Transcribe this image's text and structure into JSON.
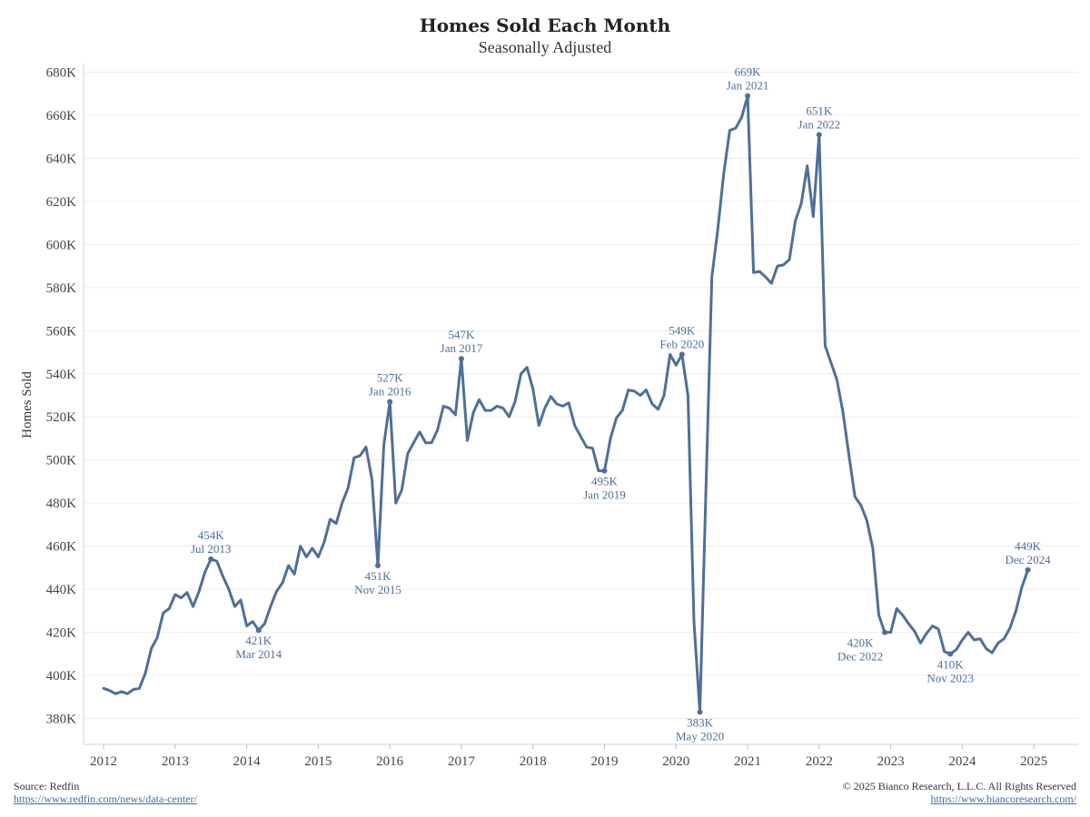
{
  "chart_data": {
    "type": "line",
    "title": "Homes Sold Each Month",
    "subtitle": "Seasonally Adjusted",
    "ylabel": "Homes Sold",
    "xlabel": "",
    "ylim": [
      368000,
      684000
    ],
    "xlim": [
      2011.72,
      2025.62
    ],
    "y_ticks": [
      380000,
      400000,
      420000,
      440000,
      460000,
      480000,
      500000,
      520000,
      540000,
      560000,
      580000,
      600000,
      620000,
      640000,
      660000,
      680000
    ],
    "y_tick_labels": [
      "380K",
      "400K",
      "420K",
      "440K",
      "460K",
      "480K",
      "500K",
      "520K",
      "540K",
      "560K",
      "580K",
      "600K",
      "620K",
      "640K",
      "660K",
      "680K"
    ],
    "x_ticks": [
      2012,
      2013,
      2014,
      2015,
      2016,
      2017,
      2018,
      2019,
      2020,
      2021,
      2022,
      2023,
      2024,
      2025
    ],
    "x_tick_labels": [
      "2012",
      "2013",
      "2014",
      "2015",
      "2016",
      "2017",
      "2018",
      "2019",
      "2020",
      "2021",
      "2022",
      "2023",
      "2024",
      "2025"
    ],
    "grid": true,
    "line_color": "#4e6f98",
    "series": [
      {
        "x": [
          "2012-01",
          "2012-02",
          "2012-03",
          "2012-04",
          "2012-05",
          "2012-06",
          "2012-07",
          "2012-08",
          "2012-09",
          "2012-10",
          "2012-11",
          "2012-12",
          "2013-01",
          "2013-02",
          "2013-03",
          "2013-04",
          "2013-05",
          "2013-06",
          "2013-07",
          "2013-08",
          "2013-09",
          "2013-10",
          "2013-11",
          "2013-12",
          "2014-01",
          "2014-02",
          "2014-03",
          "2014-04",
          "2014-05",
          "2014-06",
          "2014-07",
          "2014-08",
          "2014-09",
          "2014-10",
          "2014-11",
          "2014-12",
          "2015-01",
          "2015-02",
          "2015-03",
          "2015-04",
          "2015-05",
          "2015-06",
          "2015-07",
          "2015-08",
          "2015-09",
          "2015-10",
          "2015-11",
          "2015-12",
          "2016-01",
          "2016-02",
          "2016-03",
          "2016-04",
          "2016-05",
          "2016-06",
          "2016-07",
          "2016-08",
          "2016-09",
          "2016-10",
          "2016-11",
          "2016-12",
          "2017-01",
          "2017-02",
          "2017-03",
          "2017-04",
          "2017-05",
          "2017-06",
          "2017-07",
          "2017-08",
          "2017-09",
          "2017-10",
          "2017-11",
          "2017-12",
          "2018-01",
          "2018-02",
          "2018-03",
          "2018-04",
          "2018-05",
          "2018-06",
          "2018-07",
          "2018-08",
          "2018-09",
          "2018-10",
          "2018-11",
          "2018-12",
          "2019-01",
          "2019-02",
          "2019-03",
          "2019-04",
          "2019-05",
          "2019-06",
          "2019-07",
          "2019-08",
          "2019-09",
          "2019-10",
          "2019-11",
          "2019-12",
          "2020-01",
          "2020-02",
          "2020-03",
          "2020-04",
          "2020-05",
          "2020-06",
          "2020-07",
          "2020-08",
          "2020-09",
          "2020-10",
          "2020-11",
          "2020-12",
          "2021-01",
          "2021-02",
          "2021-03",
          "2021-04",
          "2021-05",
          "2021-06",
          "2021-07",
          "2021-08",
          "2021-09",
          "2021-10",
          "2021-11",
          "2021-12",
          "2022-01",
          "2022-02",
          "2022-03",
          "2022-04",
          "2022-05",
          "2022-06",
          "2022-07",
          "2022-08",
          "2022-09",
          "2022-10",
          "2022-11",
          "2022-12",
          "2023-01",
          "2023-02",
          "2023-03",
          "2023-04",
          "2023-05",
          "2023-06",
          "2023-07",
          "2023-08",
          "2023-09",
          "2023-10",
          "2023-11",
          "2023-12",
          "2024-01",
          "2024-02",
          "2024-03",
          "2024-04",
          "2024-05",
          "2024-06",
          "2024-07",
          "2024-08",
          "2024-09",
          "2024-10",
          "2024-11",
          "2024-12"
        ],
        "y": [
          394000,
          393000,
          391500,
          392500,
          391500,
          393500,
          394000,
          401000,
          412500,
          417500,
          429000,
          431000,
          437500,
          436000,
          438500,
          432000,
          439000,
          448000,
          454000,
          453000,
          446000,
          440000,
          432000,
          435000,
          423000,
          425000,
          421000,
          424000,
          432000,
          439000,
          443000,
          451000,
          447000,
          460000,
          455000,
          459000,
          455000,
          462000,
          472500,
          470500,
          480000,
          487000,
          501000,
          502000,
          506000,
          491000,
          451000,
          507000,
          527000,
          480000,
          486000,
          503000,
          508000,
          513000,
          508000,
          508000,
          514000,
          525000,
          524000,
          521000,
          547000,
          509000,
          522000,
          528000,
          523000,
          523000,
          525000,
          524000,
          520000,
          527000,
          540000,
          543000,
          533000,
          516000,
          524000,
          529500,
          526000,
          525000,
          526500,
          516000,
          511000,
          506000,
          505500,
          495000,
          495000,
          510000,
          519500,
          523000,
          532500,
          532000,
          530000,
          532500,
          526000,
          523500,
          530000,
          549000,
          544000,
          549000,
          530000,
          425000,
          383000,
          485000,
          585000,
          607000,
          633000,
          653000,
          654000,
          659000,
          669000,
          587000,
          587500,
          585000,
          582000,
          590000,
          590500,
          593000,
          611000,
          619000,
          636500,
          613000,
          651000,
          553000,
          545000,
          537000,
          522000,
          502000,
          483000,
          479000,
          472000,
          459000,
          428000,
          420000,
          420000,
          431000,
          428000,
          424000,
          420500,
          415000,
          419500,
          423000,
          421500,
          411000,
          410000,
          412000,
          416500,
          420000,
          416500,
          417000,
          412500,
          410500,
          415000,
          417000,
          422000,
          430000,
          441000,
          449000
        ]
      }
    ],
    "annotations": [
      {
        "date": "2013-07",
        "value": 454000,
        "label": "454K",
        "sublabel": "Jul 2013",
        "pos": "above"
      },
      {
        "date": "2014-03",
        "value": 421000,
        "label": "421K",
        "sublabel": "Mar 2014",
        "pos": "below"
      },
      {
        "date": "2015-11",
        "value": 451000,
        "label": "451K",
        "sublabel": "Nov 2015",
        "pos": "below"
      },
      {
        "date": "2016-01",
        "value": 527000,
        "label": "527K",
        "sublabel": "Jan 2016",
        "pos": "above"
      },
      {
        "date": "2017-01",
        "value": 547000,
        "label": "547K",
        "sublabel": "Jan 2017",
        "pos": "above"
      },
      {
        "date": "2019-01",
        "value": 495000,
        "label": "495K",
        "sublabel": "Jan 2019",
        "pos": "below"
      },
      {
        "date": "2020-02",
        "value": 549000,
        "label": "549K",
        "sublabel": "Feb 2020",
        "pos": "above"
      },
      {
        "date": "2020-05",
        "value": 383000,
        "label": "383K",
        "sublabel": "May 2020",
        "pos": "below"
      },
      {
        "date": "2021-01",
        "value": 669000,
        "label": "669K",
        "sublabel": "Jan 2021",
        "pos": "above"
      },
      {
        "date": "2022-01",
        "value": 651000,
        "label": "651K",
        "sublabel": "Jan 2022",
        "pos": "above"
      },
      {
        "date": "2022-12",
        "value": 420000,
        "label": "420K",
        "sublabel": "Dec 2022",
        "pos": "below-left"
      },
      {
        "date": "2023-11",
        "value": 410000,
        "label": "410K",
        "sublabel": "Nov 2023",
        "pos": "below"
      },
      {
        "date": "2024-12",
        "value": 449000,
        "label": "449K",
        "sublabel": "Dec 2024",
        "pos": "above"
      }
    ]
  },
  "footer": {
    "source_label": "Source: Redfin",
    "source_link": "https://www.redfin.com/news/data-center/",
    "copyright": "© 2025 Bianco Research, L.L.C. All Rights Reserved",
    "site_link": "https://www.biancoresearch.com/"
  }
}
